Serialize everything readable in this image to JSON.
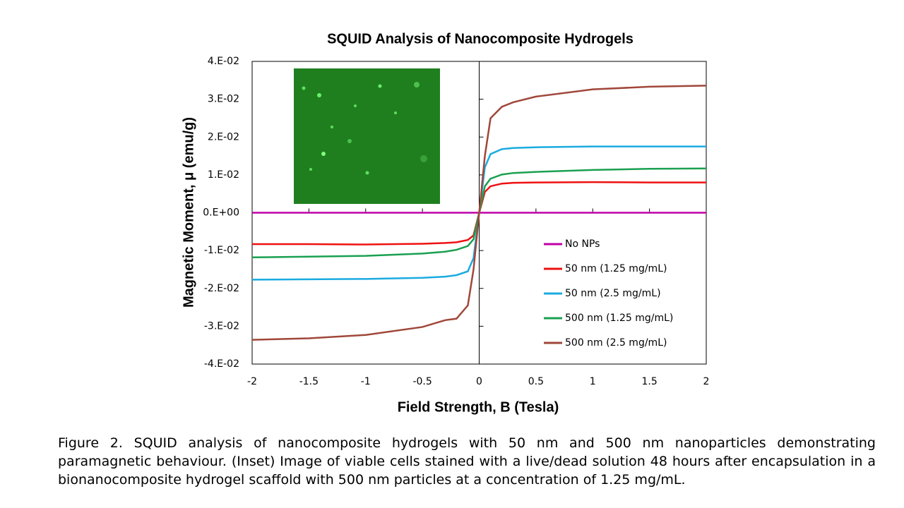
{
  "chart_data": {
    "type": "line",
    "title": "SQUID Analysis of Nanocomposite Hydrogels",
    "x_label": "Field Strength, B (Tesla)",
    "y_label": "Magnetic Moment, μ (emu/g)",
    "x": [
      -2,
      -1.5,
      -1,
      -0.5,
      -0.3,
      -0.2,
      -0.1,
      -0.05,
      0,
      0.05,
      0.1,
      0.2,
      0.3,
      0.5,
      1,
      1.5,
      2
    ],
    "series": [
      {
        "name": "No NPs",
        "color": "#c000a8",
        "values": [
          0,
          0,
          0,
          0,
          0,
          0,
          0,
          0,
          0,
          0,
          0,
          0,
          0,
          0,
          0,
          0,
          0
        ]
      },
      {
        "name": "50 nm (1.25 mg/mL)",
        "color": "#ee1111",
        "values": [
          -0.0083,
          -0.0083,
          -0.0084,
          -0.0082,
          -0.008,
          -0.0078,
          -0.0072,
          -0.006,
          0,
          0.0055,
          0.007,
          0.0077,
          0.0079,
          0.008,
          0.0081,
          0.008,
          0.008
        ]
      },
      {
        "name": "50 nm (2.5 mg/mL)",
        "color": "#1aabe0",
        "values": [
          -0.0177,
          -0.0176,
          -0.0175,
          -0.0172,
          -0.0169,
          -0.0165,
          -0.0155,
          -0.012,
          0,
          0.012,
          0.0155,
          0.0168,
          0.0171,
          0.0173,
          0.0175,
          0.0175,
          0.0175
        ]
      },
      {
        "name": "500 nm (1.25 mg/mL)",
        "color": "#1aa050",
        "values": [
          -0.0118,
          -0.0116,
          -0.0114,
          -0.0108,
          -0.0103,
          -0.0098,
          -0.0088,
          -0.007,
          0,
          0.007,
          0.009,
          0.0101,
          0.0105,
          0.0108,
          0.0113,
          0.0116,
          0.0117
        ]
      },
      {
        "name": "500 nm (2.5 mg/mL)",
        "color": "#a0473a",
        "values": [
          -0.0336,
          -0.0332,
          -0.0323,
          -0.0302,
          -0.0284,
          -0.028,
          -0.0245,
          -0.015,
          0,
          0.015,
          0.025,
          0.028,
          0.0292,
          0.0307,
          0.0326,
          0.0333,
          0.0336
        ]
      }
    ],
    "xlim": [
      -2,
      2
    ],
    "xticks": [
      -2,
      -1.5,
      -1,
      -0.5,
      0,
      0.5,
      1,
      1.5,
      2
    ],
    "ylim": [
      -0.04,
      0.04
    ],
    "yticks": [
      {
        "value": -0.04,
        "label": "-4.E-02"
      },
      {
        "value": -0.03,
        "label": "-3.E-02"
      },
      {
        "value": -0.02,
        "label": "-2.E-02"
      },
      {
        "value": -0.01,
        "label": "-1.E-02"
      },
      {
        "value": 0,
        "label": "0.E+00"
      },
      {
        "value": 0.01,
        "label": "1.E-02"
      },
      {
        "value": 0.02,
        "label": "2.E-02"
      },
      {
        "value": 0.03,
        "label": "3.E-02"
      },
      {
        "value": 0.04,
        "label": "4.E-02"
      }
    ],
    "legend": "center right",
    "caption": "Figure 2. SQUID analysis of nanocomposite hydrogels with 50 nm and 500 nm nanoparticles demonstrating paramagnetic behaviour. (Inset) Image of viable cells stained with a live/dead solution 48 hours after encapsulation in a bionanocomposite hydrogel scaffold with 500 nm particles at a concentration of 1.25 mg/mL."
  }
}
